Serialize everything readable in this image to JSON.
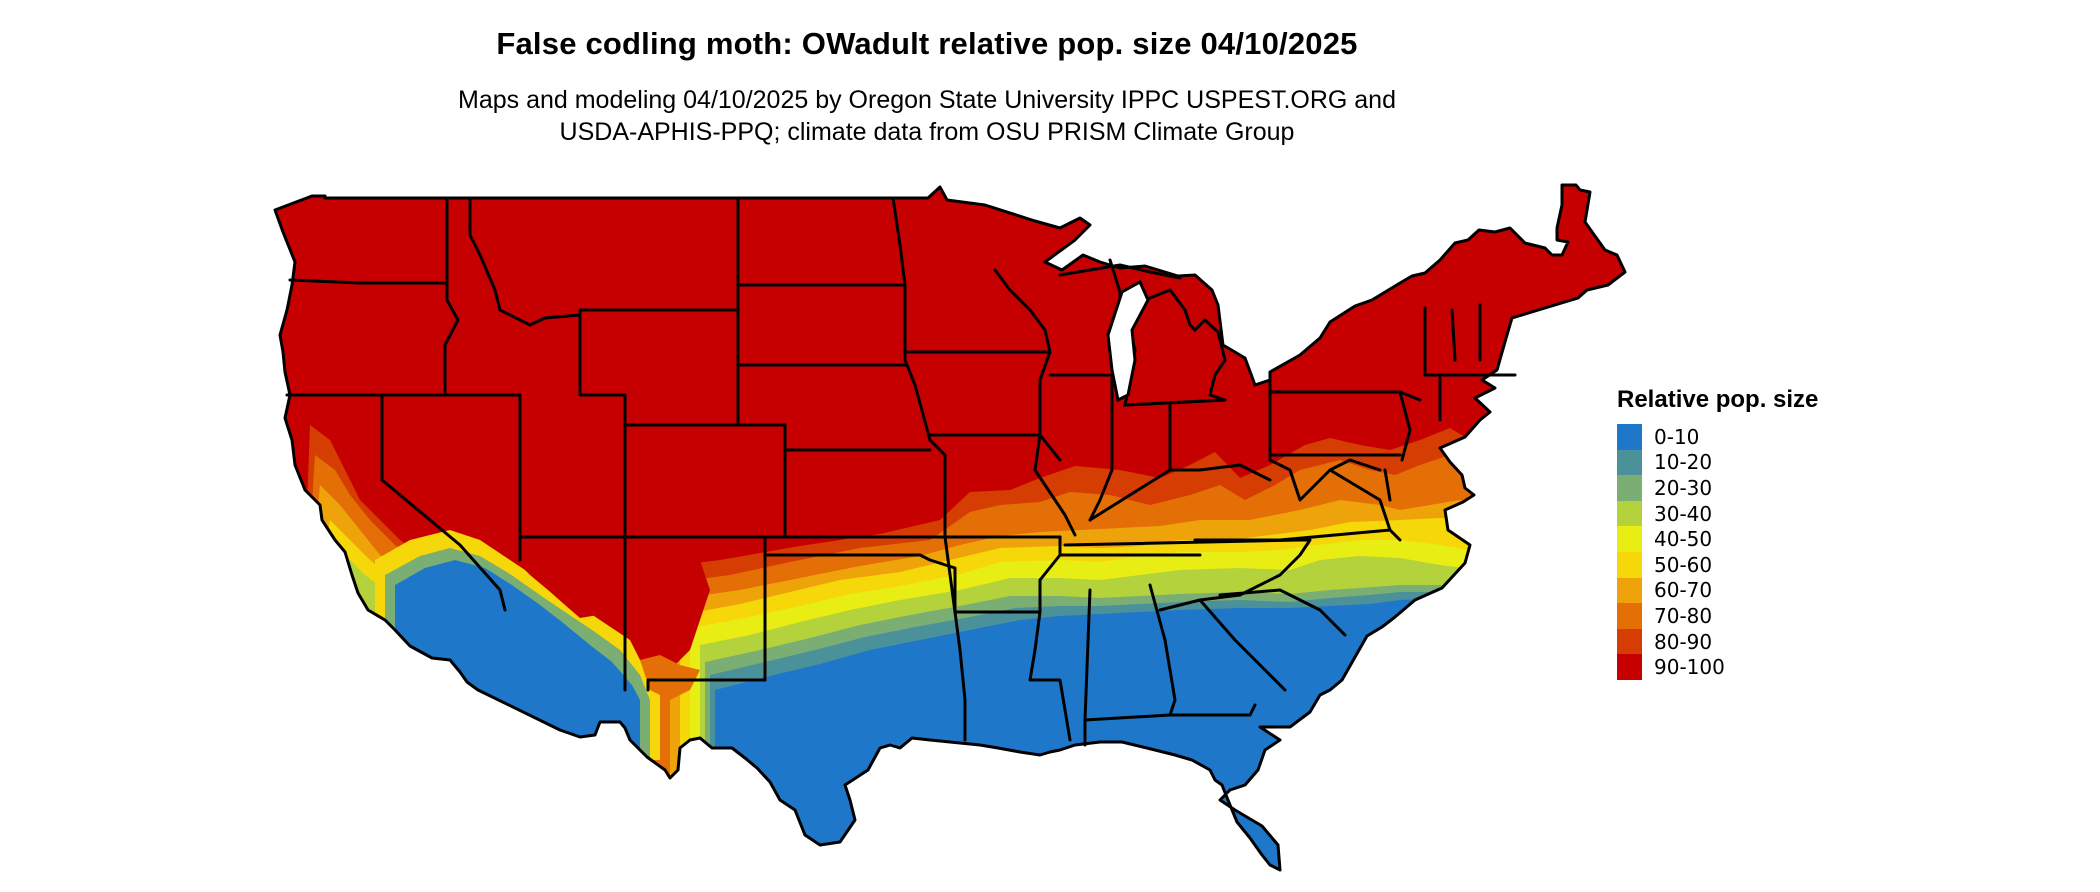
{
  "header": {
    "title": "False codling moth: OWadult relative pop. size 04/10/2025",
    "subtitle_line1": "Maps and modeling 04/10/2025 by Oregon State University IPPC USPEST.ORG and",
    "subtitle_line2": "USDA-APHIS-PPQ; climate data from OSU PRISM Climate Group"
  },
  "legend": {
    "title": "Relative pop. size",
    "items": [
      {
        "label": "0-10",
        "color": "#1f77c9"
      },
      {
        "label": "10-20",
        "color": "#4a9199"
      },
      {
        "label": "20-30",
        "color": "#7aae73"
      },
      {
        "label": "30-40",
        "color": "#b4d23c"
      },
      {
        "label": "40-50",
        "color": "#e8ee13"
      },
      {
        "label": "50-60",
        "color": "#f6d70a"
      },
      {
        "label": "60-70",
        "color": "#eea30a"
      },
      {
        "label": "70-80",
        "color": "#e46f06"
      },
      {
        "label": "80-90",
        "color": "#d63d03"
      },
      {
        "label": "90-100",
        "color": "#c60000"
      }
    ]
  },
  "map": {
    "region": "Contiguous United States",
    "boundary_color": "#000000"
  }
}
